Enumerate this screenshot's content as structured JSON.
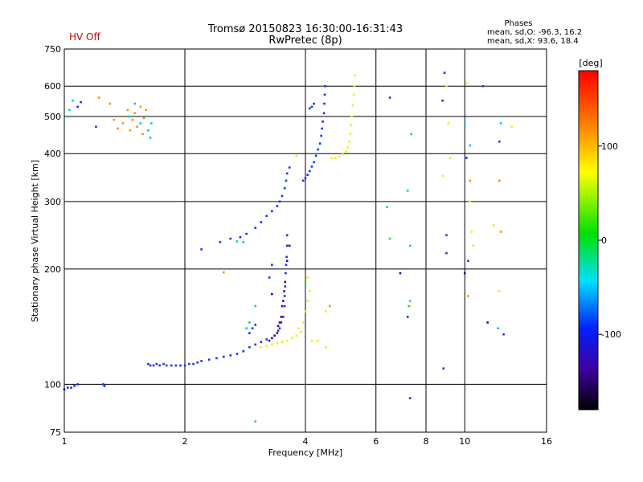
{
  "header": {
    "title_line1": "Tromsø 20150823 16:30:00-16:31:43",
    "title_line2": "RwPretec (8p)",
    "status_label": "HV Off",
    "phases_title": "Phases",
    "phases_line1": "mean, sd,O: -96.3, 16.2",
    "phases_line2": "mean, sd,X:  93.6, 18.4"
  },
  "colors": {
    "ordinary": "#1830ff",
    "ordinary_dark": "#3b00a0",
    "extraordinary": "#f0f000",
    "cyan": "#00c8e0",
    "orange": "#ff9000",
    "green": "#30e030"
  },
  "chart_data": {
    "type": "scatter",
    "title": "",
    "xlabel": "Frequency [MHz]",
    "ylabel": "Stationary phase Virtual Height [km]",
    "x_scale": "log",
    "y_scale": "log",
    "xlim": [
      1,
      16
    ],
    "ylim": [
      75,
      750
    ],
    "x_ticks": [
      1,
      2,
      4,
      6,
      8,
      10,
      16
    ],
    "y_ticks": [
      75,
      100,
      200,
      300,
      400,
      500,
      600,
      750
    ],
    "x_gridlines": [
      2,
      4,
      6,
      8,
      10
    ],
    "y_gridlines": [
      100,
      200,
      300,
      400,
      500,
      600
    ],
    "grid": true,
    "colorbar": {
      "label": "[deg]",
      "min": -180,
      "max": 180,
      "ticks": [
        100,
        0,
        -100
      ]
    },
    "series": [
      {
        "color": "#1830ff",
        "points": [
          [
            1.0,
            97
          ],
          [
            1.02,
            98
          ],
          [
            1.04,
            98
          ],
          [
            1.06,
            99
          ],
          [
            1.08,
            100
          ],
          [
            1.25,
            100
          ],
          [
            1.26,
            99
          ],
          [
            1.62,
            113
          ],
          [
            1.64,
            112
          ],
          [
            1.67,
            112
          ],
          [
            1.7,
            113
          ],
          [
            1.73,
            112
          ],
          [
            1.77,
            113
          ],
          [
            1.8,
            112
          ],
          [
            1.85,
            112
          ],
          [
            1.9,
            112
          ],
          [
            1.95,
            112
          ],
          [
            2.0,
            112
          ],
          [
            2.05,
            113
          ],
          [
            2.1,
            113
          ],
          [
            2.15,
            114
          ],
          [
            2.2,
            115
          ],
          [
            2.3,
            116
          ],
          [
            2.4,
            117
          ],
          [
            2.5,
            118
          ],
          [
            2.6,
            119
          ],
          [
            2.7,
            120
          ],
          [
            2.8,
            122
          ],
          [
            2.9,
            125
          ],
          [
            3.0,
            127
          ],
          [
            3.1,
            129
          ],
          [
            3.2,
            131
          ],
          [
            2.9,
            136
          ],
          [
            2.95,
            140
          ],
          [
            3.0,
            143
          ],
          [
            3.55,
            160
          ],
          [
            3.55,
            170
          ],
          [
            3.56,
            180
          ],
          [
            3.57,
            195
          ],
          [
            3.58,
            205
          ],
          [
            3.59,
            215
          ],
          [
            3.52,
            150
          ],
          [
            3.48,
            145
          ],
          [
            3.45,
            140
          ],
          [
            3.42,
            138
          ],
          [
            3.6,
            230
          ],
          [
            3.6,
            245
          ],
          [
            3.25,
            190
          ],
          [
            3.3,
            205
          ],
          [
            2.2,
            225
          ],
          [
            2.45,
            235
          ],
          [
            2.6,
            240
          ],
          [
            2.75,
            242
          ],
          [
            2.85,
            247
          ],
          [
            3.0,
            256
          ],
          [
            3.1,
            265
          ],
          [
            3.2,
            275
          ],
          [
            3.3,
            283
          ],
          [
            3.4,
            292
          ],
          [
            3.45,
            300
          ],
          [
            3.5,
            310
          ],
          [
            3.55,
            325
          ],
          [
            3.58,
            340
          ],
          [
            3.6,
            355
          ],
          [
            3.65,
            368
          ],
          [
            3.95,
            340
          ],
          [
            4.0,
            345
          ],
          [
            4.05,
            352
          ],
          [
            4.1,
            360
          ],
          [
            4.15,
            370
          ],
          [
            4.2,
            380
          ],
          [
            4.25,
            395
          ],
          [
            4.3,
            410
          ],
          [
            4.35,
            425
          ],
          [
            4.38,
            445
          ],
          [
            4.4,
            465
          ],
          [
            4.42,
            485
          ],
          [
            4.45,
            510
          ],
          [
            4.46,
            540
          ],
          [
            4.47,
            570
          ],
          [
            4.48,
            600
          ],
          [
            4.1,
            525
          ],
          [
            4.15,
            530
          ],
          [
            4.2,
            540
          ],
          [
            1.2,
            470
          ],
          [
            1.08,
            530
          ],
          [
            1.1,
            545
          ],
          [
            6.5,
            560
          ],
          [
            7.2,
            150
          ],
          [
            7.3,
            92
          ],
          [
            8.8,
            550
          ],
          [
            8.85,
            110
          ],
          [
            8.9,
            650
          ],
          [
            10.1,
            390
          ],
          [
            11.1,
            600
          ],
          [
            12.2,
            430
          ],
          [
            12.5,
            135
          ],
          [
            9.0,
            245
          ],
          [
            9.0,
            220
          ],
          [
            10.2,
            210
          ]
        ]
      },
      {
        "color": "#3b00a0",
        "points": [
          [
            3.25,
            130
          ],
          [
            3.3,
            132
          ],
          [
            3.35,
            134
          ],
          [
            3.4,
            136
          ],
          [
            3.48,
            150
          ],
          [
            3.5,
            160
          ],
          [
            3.52,
            165
          ],
          [
            3.54,
            175
          ],
          [
            3.56,
            185
          ],
          [
            3.45,
            145
          ],
          [
            3.42,
            142
          ],
          [
            3.6,
            210
          ],
          [
            3.3,
            172
          ],
          [
            3.65,
            230
          ],
          [
            6.9,
            195
          ],
          [
            10.0,
            195
          ],
          [
            11.4,
            145
          ]
        ]
      },
      {
        "color": "#f0f000",
        "points": [
          [
            3.1,
            125
          ],
          [
            3.2,
            126
          ],
          [
            3.3,
            127
          ],
          [
            3.4,
            128
          ],
          [
            3.5,
            129
          ],
          [
            3.6,
            130
          ],
          [
            3.7,
            132
          ],
          [
            3.8,
            134
          ],
          [
            3.9,
            137
          ],
          [
            3.85,
            140
          ],
          [
            3.95,
            145
          ],
          [
            4.0,
            155
          ],
          [
            4.05,
            165
          ],
          [
            4.1,
            175
          ],
          [
            4.05,
            190
          ],
          [
            4.15,
            130
          ],
          [
            4.3,
            130
          ],
          [
            4.65,
            390
          ],
          [
            4.75,
            390
          ],
          [
            4.85,
            393
          ],
          [
            4.95,
            398
          ],
          [
            5.05,
            405
          ],
          [
            5.1,
            415
          ],
          [
            5.15,
            430
          ],
          [
            5.18,
            450
          ],
          [
            5.2,
            475
          ],
          [
            5.22,
            500
          ],
          [
            5.25,
            535
          ],
          [
            5.28,
            570
          ],
          [
            5.3,
            600
          ],
          [
            5.32,
            640
          ],
          [
            4.5,
            155
          ],
          [
            4.5,
            125
          ],
          [
            3.8,
            395
          ],
          [
            9.0,
            600
          ],
          [
            9.1,
            480
          ],
          [
            9.2,
            390
          ],
          [
            10.1,
            610
          ],
          [
            10.3,
            300
          ],
          [
            10.4,
            250
          ],
          [
            10.5,
            230
          ],
          [
            8.8,
            350
          ],
          [
            13.1,
            470
          ],
          [
            12.2,
            175
          ],
          [
            11.8,
            260
          ],
          [
            7.3,
            160
          ]
        ]
      },
      {
        "color": "#ff9000",
        "points": [
          [
            1.4,
            480
          ],
          [
            1.42,
            500
          ],
          [
            1.44,
            520
          ],
          [
            1.46,
            460
          ],
          [
            1.48,
            490
          ],
          [
            1.5,
            510
          ],
          [
            1.52,
            470
          ],
          [
            1.55,
            530
          ],
          [
            1.57,
            450
          ],
          [
            1.58,
            495
          ],
          [
            1.6,
            520
          ],
          [
            1.36,
            465
          ],
          [
            1.33,
            490
          ],
          [
            1.22,
            560
          ],
          [
            1.3,
            540
          ],
          [
            2.5,
            196
          ],
          [
            4.6,
            160
          ],
          [
            10.3,
            340
          ],
          [
            12.2,
            340
          ],
          [
            12.3,
            250
          ],
          [
            10.2,
            170
          ]
        ]
      },
      {
        "color": "#00c8e0",
        "points": [
          [
            1.02,
            500
          ],
          [
            1.03,
            520
          ],
          [
            1.05,
            550
          ],
          [
            1.45,
            500
          ],
          [
            1.5,
            540
          ],
          [
            1.55,
            480
          ],
          [
            1.6,
            500
          ],
          [
            1.62,
            460
          ],
          [
            1.65,
            480
          ],
          [
            1.64,
            440
          ],
          [
            2.7,
            236
          ],
          [
            2.8,
            235
          ],
          [
            2.85,
            140
          ],
          [
            2.9,
            145
          ],
          [
            3.0,
            160
          ],
          [
            6.4,
            290
          ],
          [
            7.2,
            320
          ],
          [
            7.3,
            230
          ],
          [
            7.35,
            450
          ],
          [
            7.25,
            160
          ],
          [
            12.1,
            140
          ],
          [
            12.3,
            480
          ],
          [
            10.0,
            480
          ],
          [
            10.3,
            420
          ]
        ]
      },
      {
        "color": "#30e030",
        "points": [
          [
            3.0,
            80
          ],
          [
            6.5,
            240
          ],
          [
            7.3,
            165
          ],
          [
            4.0,
            185
          ]
        ]
      }
    ]
  }
}
